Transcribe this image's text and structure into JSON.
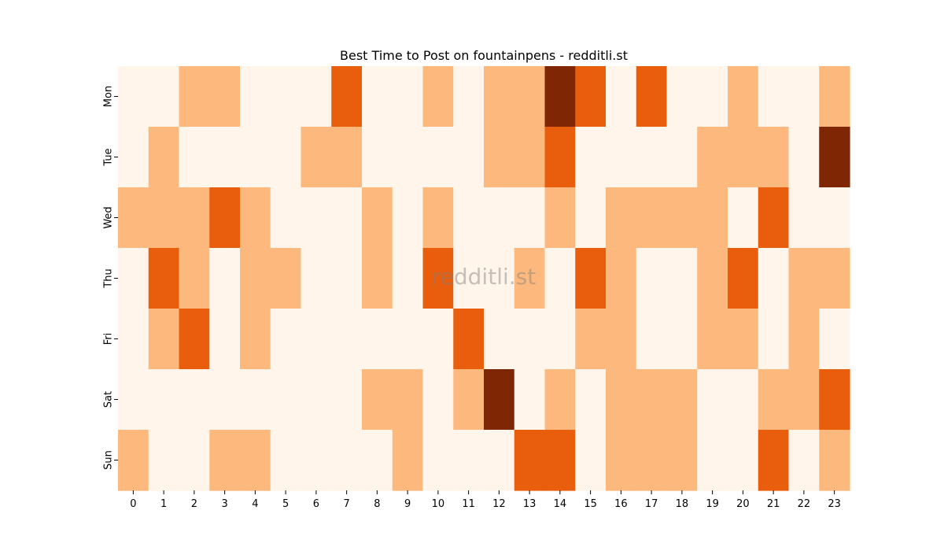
{
  "chart_data": {
    "type": "heatmap",
    "title": "Best Time to Post on fountainpens - redditli.st",
    "watermark": "redditli.st",
    "xlabel": "",
    "ylabel": "",
    "x_categories": [
      "0",
      "1",
      "2",
      "3",
      "4",
      "5",
      "6",
      "7",
      "8",
      "9",
      "10",
      "11",
      "12",
      "13",
      "14",
      "15",
      "16",
      "17",
      "18",
      "19",
      "20",
      "21",
      "22",
      "23"
    ],
    "y_categories": [
      "Mon",
      "Tue",
      "Wed",
      "Thu",
      "Fri",
      "Sat",
      "Sun"
    ],
    "value_range": [
      0,
      3
    ],
    "colorbar": false,
    "palette": [
      "#fff5eb",
      "#fdb97d",
      "#e95e0d",
      "#7f2704"
    ],
    "values": [
      [
        0,
        0,
        1,
        1,
        0,
        0,
        0,
        2,
        0,
        0,
        1,
        0,
        1,
        1,
        3,
        2,
        0,
        2,
        0,
        0,
        1,
        0,
        0,
        1
      ],
      [
        0,
        1,
        0,
        0,
        0,
        0,
        1,
        1,
        0,
        0,
        0,
        0,
        1,
        1,
        2,
        0,
        0,
        0,
        0,
        1,
        1,
        1,
        0,
        3
      ],
      [
        1,
        1,
        1,
        2,
        1,
        0,
        0,
        0,
        1,
        0,
        1,
        0,
        0,
        0,
        1,
        0,
        1,
        1,
        1,
        1,
        0,
        2,
        0,
        0
      ],
      [
        0,
        2,
        1,
        0,
        1,
        1,
        0,
        0,
        1,
        0,
        2,
        0,
        0,
        1,
        0,
        2,
        1,
        0,
        0,
        1,
        2,
        0,
        1,
        1
      ],
      [
        0,
        1,
        2,
        0,
        1,
        0,
        0,
        0,
        0,
        0,
        0,
        2,
        0,
        0,
        0,
        1,
        1,
        0,
        0,
        1,
        1,
        0,
        1,
        0
      ],
      [
        0,
        0,
        0,
        0,
        0,
        0,
        0,
        0,
        1,
        1,
        0,
        1,
        3,
        0,
        1,
        0,
        1,
        1,
        1,
        0,
        0,
        1,
        1,
        2
      ],
      [
        1,
        0,
        0,
        1,
        1,
        0,
        0,
        0,
        0,
        1,
        0,
        0,
        0,
        2,
        2,
        0,
        1,
        1,
        1,
        0,
        0,
        2,
        0,
        1
      ]
    ]
  }
}
